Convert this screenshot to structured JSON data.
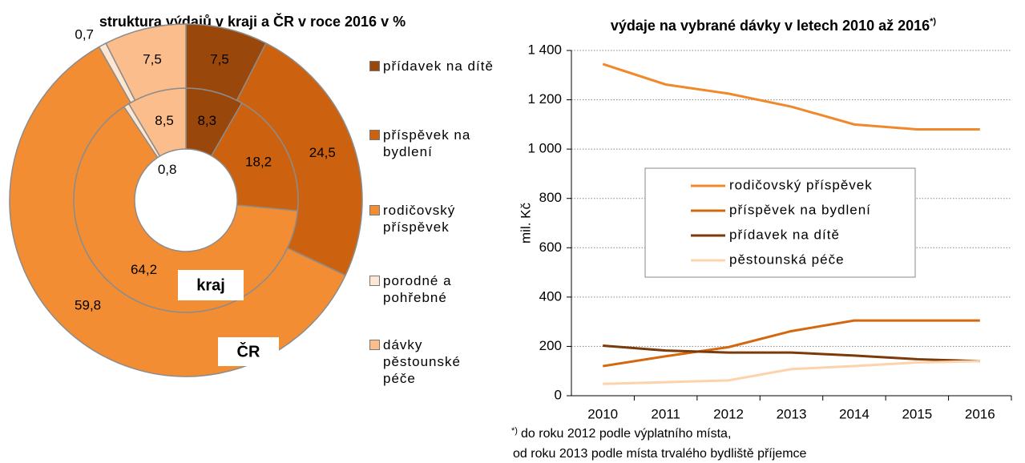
{
  "chart_data": [
    {
      "type": "donut",
      "title": "struktura výdajů v kraji a ČR v roce 2016 v %",
      "categories": [
        "přídavek na dítě",
        "příspěvek na bydlení",
        "rodičovský příspěvek",
        "porodné a pohřebné",
        "dávky pěstounské péče"
      ],
      "colors": [
        "#9a470c",
        "#cc620f",
        "#f38d33",
        "#fde6d2",
        "#fbbd8c"
      ],
      "series": [
        {
          "name": "kraj",
          "values": [
            8.3,
            18.2,
            64.2,
            0.8,
            8.5
          ],
          "value_labels": [
            "8,3",
            "18,2",
            "64,2",
            "0,8",
            "8,5"
          ]
        },
        {
          "name": "ČR",
          "values": [
            7.5,
            24.5,
            59.8,
            0.7,
            7.5
          ],
          "value_labels": [
            "7,5",
            "24,5",
            "59,8",
            "0,7",
            "7,5"
          ]
        }
      ]
    },
    {
      "type": "line",
      "title": "výdaje na vybrané dávky v letech 2010 až 2016",
      "note_mark": "*)",
      "note": [
        "do roku 2012 podle výplatního místa,",
        "od roku 2013 podle místa trvalého bydliště příjemce"
      ],
      "y_label": "mil. Kč",
      "categories": [
        "2010",
        "2011",
        "2012",
        "2013",
        "2014",
        "2015",
        "2016"
      ],
      "ylim": [
        0,
        1400
      ],
      "yticks": [
        0,
        200,
        400,
        600,
        800,
        {
          "value": 1000,
          "label": "1 000"
        },
        {
          "value": 1200,
          "label": "1 200"
        },
        {
          "value": 1400,
          "label": "1 400"
        }
      ],
      "grid": true,
      "series": [
        {
          "name": "rodičovský příspěvek",
          "color": "#f0892c",
          "values": [
            1345,
            1262,
            1225,
            1172,
            1100,
            1080,
            1080
          ]
        },
        {
          "name": "příspěvek na bydlení",
          "color": "#d3680f",
          "values": [
            120,
            160,
            197,
            262,
            305,
            305,
            305
          ]
        },
        {
          "name": "přídavek na dítě",
          "color": "#7a3a0a",
          "values": [
            203,
            183,
            175,
            175,
            163,
            148,
            140
          ]
        },
        {
          "name": "pěstounská péče",
          "color": "#fcd3ab",
          "values": [
            48,
            55,
            62,
            108,
            120,
            135,
            140
          ]
        }
      ]
    }
  ]
}
